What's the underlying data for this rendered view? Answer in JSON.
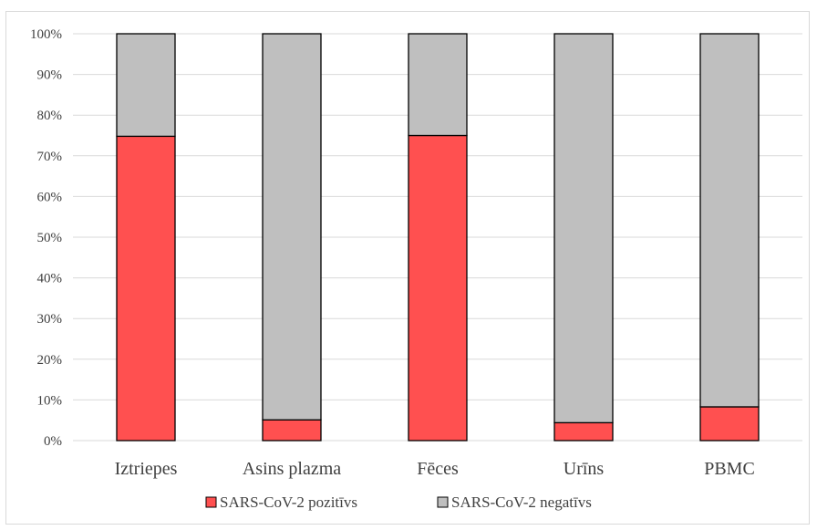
{
  "chart_data": {
    "type": "bar",
    "stacked": true,
    "orientation": "vertical",
    "categories": [
      "Iztriepes",
      "Asins plazma",
      "Fēces",
      "Urīns",
      "PBMC"
    ],
    "series": [
      {
        "name": "SARS-CoV-2 pozitīvs",
        "color": "#ff5050",
        "values": [
          74.8,
          5.1,
          75.0,
          4.4,
          8.3
        ]
      },
      {
        "name": "SARS-CoV-2 negatīvs",
        "color": "#bfbfbf",
        "values": [
          25.2,
          94.9,
          25.0,
          95.6,
          91.7
        ]
      }
    ],
    "y_ticks": [
      "0%",
      "10%",
      "20%",
      "30%",
      "40%",
      "50%",
      "60%",
      "70%",
      "80%",
      "90%",
      "100%"
    ],
    "ylim": [
      0,
      100
    ],
    "grid": true,
    "legend_position": "bottom",
    "title": "",
    "xlabel": "",
    "ylabel": ""
  }
}
